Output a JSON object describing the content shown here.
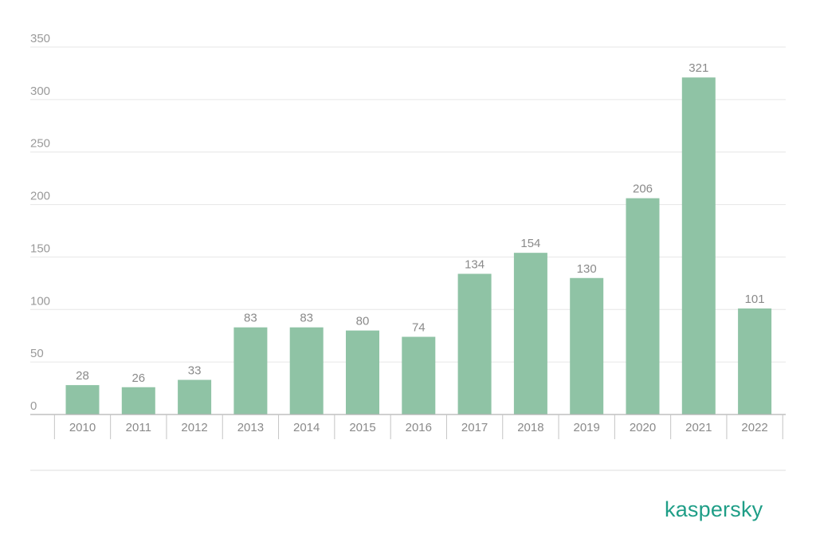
{
  "chart_data": {
    "type": "bar",
    "categories": [
      "2010",
      "2011",
      "2012",
      "2013",
      "2014",
      "2015",
      "2016",
      "2017",
      "2018",
      "2019",
      "2020",
      "2021",
      "2022"
    ],
    "values": [
      28,
      26,
      33,
      83,
      83,
      80,
      74,
      134,
      154,
      130,
      206,
      321,
      101
    ],
    "ylim": [
      0,
      350
    ],
    "yticks": [
      0,
      50,
      100,
      150,
      200,
      250,
      300,
      350
    ],
    "grid": true,
    "legend": "none",
    "bar_color": "#8fc3a5",
    "data_labels": true
  },
  "brand": {
    "logo_text": "kaspersky",
    "logo_color": "#1f9e87"
  }
}
